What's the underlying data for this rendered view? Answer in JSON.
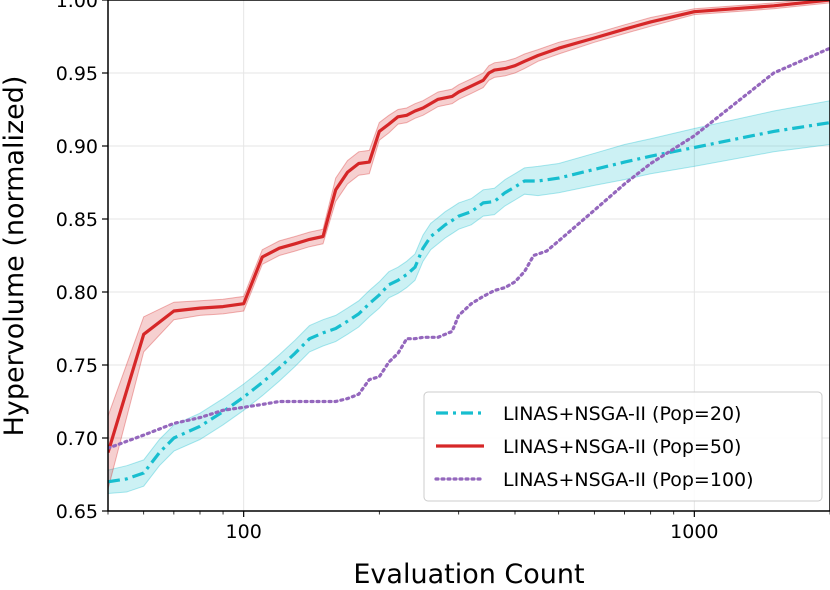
{
  "chart_data": {
    "type": "line",
    "xlabel": "Evaluation Count",
    "ylabel": "Hypervolume (normalized)",
    "xscale": "log",
    "xlim": [
      50,
      2000
    ],
    "ylim": [
      0.65,
      1.0
    ],
    "x_ticks": [
      {
        "value": 100,
        "label": "100"
      },
      {
        "value": 1000,
        "label": "1000"
      }
    ],
    "y_ticks": [
      {
        "value": 0.65,
        "label": "0.65"
      },
      {
        "value": 0.7,
        "label": "0.70"
      },
      {
        "value": 0.75,
        "label": "0.75"
      },
      {
        "value": 0.8,
        "label": "0.80"
      },
      {
        "value": 0.85,
        "label": "0.85"
      },
      {
        "value": 0.9,
        "label": "0.90"
      },
      {
        "value": 0.95,
        "label": "0.95"
      },
      {
        "value": 1.0,
        "label": "1.00"
      }
    ],
    "grid": true,
    "legend_position": "lower-right",
    "series": [
      {
        "name": "LINAS+NSGA-II (Pop=20)",
        "color": "#17becf",
        "style": "dashdot",
        "x": [
          50,
          55,
          60,
          65,
          70,
          80,
          90,
          100,
          110,
          120,
          130,
          140,
          150,
          160,
          170,
          180,
          190,
          200,
          210,
          220,
          230,
          240,
          250,
          260,
          270,
          280,
          290,
          300,
          320,
          340,
          360,
          380,
          400,
          420,
          450,
          500,
          600,
          700,
          800,
          1000,
          1500,
          2000
        ],
        "y": [
          0.67,
          0.672,
          0.676,
          0.69,
          0.7,
          0.708,
          0.718,
          0.728,
          0.738,
          0.748,
          0.758,
          0.768,
          0.772,
          0.775,
          0.78,
          0.785,
          0.792,
          0.798,
          0.805,
          0.808,
          0.812,
          0.817,
          0.83,
          0.838,
          0.842,
          0.846,
          0.849,
          0.852,
          0.855,
          0.861,
          0.862,
          0.868,
          0.872,
          0.876,
          0.876,
          0.878,
          0.884,
          0.889,
          0.893,
          0.899,
          0.91,
          0.916
        ],
        "band": [
          0.008,
          0.009,
          0.009,
          0.009,
          0.009,
          0.009,
          0.009,
          0.009,
          0.009,
          0.009,
          0.009,
          0.009,
          0.009,
          0.009,
          0.009,
          0.009,
          0.009,
          0.009,
          0.009,
          0.009,
          0.009,
          0.009,
          0.009,
          0.009,
          0.009,
          0.009,
          0.009,
          0.009,
          0.009,
          0.009,
          0.009,
          0.009,
          0.009,
          0.009,
          0.01,
          0.01,
          0.011,
          0.012,
          0.012,
          0.013,
          0.014,
          0.015
        ]
      },
      {
        "name": "LINAS+NSGA-II (Pop=50)",
        "color": "#d62728",
        "style": "solid",
        "x": [
          50,
          60,
          70,
          80,
          90,
          100,
          110,
          120,
          130,
          140,
          150,
          160,
          170,
          180,
          190,
          200,
          210,
          220,
          230,
          240,
          250,
          270,
          290,
          300,
          320,
          340,
          350,
          360,
          380,
          400,
          420,
          450,
          500,
          600,
          700,
          800,
          1000,
          1500,
          2000
        ],
        "y": [
          0.69,
          0.771,
          0.787,
          0.789,
          0.79,
          0.792,
          0.824,
          0.83,
          0.833,
          0.836,
          0.838,
          0.87,
          0.882,
          0.888,
          0.889,
          0.91,
          0.915,
          0.92,
          0.921,
          0.924,
          0.926,
          0.932,
          0.934,
          0.937,
          0.941,
          0.945,
          0.95,
          0.952,
          0.953,
          0.955,
          0.958,
          0.962,
          0.967,
          0.974,
          0.98,
          0.985,
          0.992,
          0.996,
          1.0
        ],
        "band": [
          0.025,
          0.012,
          0.006,
          0.005,
          0.005,
          0.005,
          0.005,
          0.005,
          0.005,
          0.005,
          0.005,
          0.008,
          0.008,
          0.008,
          0.008,
          0.006,
          0.006,
          0.005,
          0.005,
          0.005,
          0.005,
          0.005,
          0.005,
          0.005,
          0.005,
          0.005,
          0.005,
          0.005,
          0.005,
          0.005,
          0.005,
          0.004,
          0.004,
          0.003,
          0.003,
          0.003,
          0.002,
          0.002,
          0.002
        ]
      },
      {
        "name": "LINAS+NSGA-II (Pop=100)",
        "color": "#9467bd",
        "style": "dotted",
        "x": [
          50,
          60,
          70,
          80,
          90,
          100,
          110,
          120,
          130,
          140,
          150,
          160,
          170,
          180,
          190,
          200,
          210,
          220,
          230,
          240,
          250,
          270,
          290,
          300,
          320,
          340,
          360,
          380,
          400,
          420,
          440,
          470,
          500,
          600,
          700,
          800,
          1000,
          1500,
          2000
        ],
        "y": [
          0.693,
          0.702,
          0.71,
          0.714,
          0.719,
          0.721,
          0.723,
          0.725,
          0.725,
          0.725,
          0.725,
          0.725,
          0.727,
          0.73,
          0.74,
          0.742,
          0.752,
          0.758,
          0.768,
          0.768,
          0.769,
          0.769,
          0.773,
          0.784,
          0.792,
          0.797,
          0.801,
          0.803,
          0.807,
          0.814,
          0.825,
          0.828,
          0.835,
          0.856,
          0.874,
          0.888,
          0.907,
          0.95,
          0.967
        ]
      }
    ]
  }
}
